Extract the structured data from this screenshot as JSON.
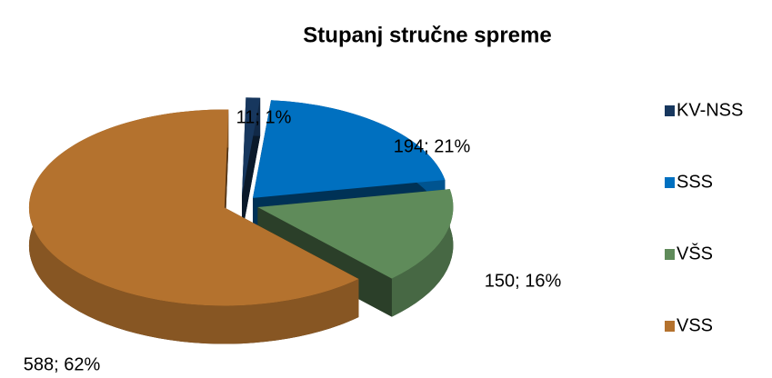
{
  "chart_data": {
    "type": "pie",
    "title": "Stupanj stručne spreme",
    "categories": [
      "KV-NSS",
      "SSS",
      "VŠS",
      "VSS"
    ],
    "values": [
      11,
      194,
      150,
      588
    ],
    "value_labels": [
      "11; 1%",
      "194; 21%",
      "150; 16%",
      "588; 62%"
    ],
    "colors": [
      "#17375e",
      "#0070c0",
      "#5f8b5a",
      "#b4722e"
    ],
    "legend": "right"
  }
}
